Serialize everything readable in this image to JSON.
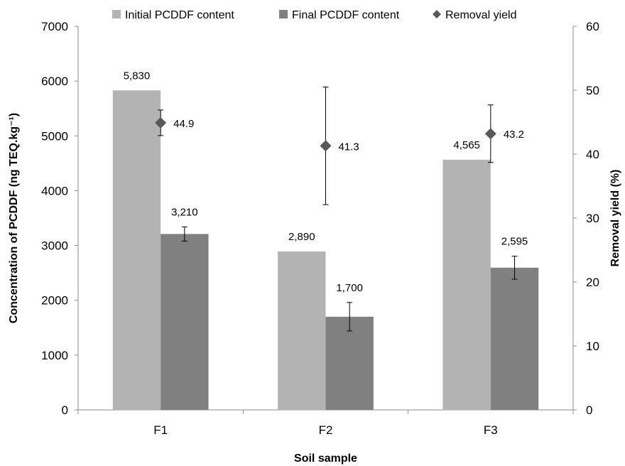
{
  "chart_data": {
    "type": "bar",
    "categories": [
      "F1",
      "F2",
      "F3"
    ],
    "series": [
      {
        "name": "Initial PCDDF content",
        "axis": "left",
        "color": "#b3b3b3",
        "values": [
          5830,
          2890,
          4565
        ],
        "labels": [
          "5,830",
          "2,890",
          "4,565"
        ]
      },
      {
        "name": "Final PCDDF content",
        "axis": "left",
        "color": "#808080",
        "values": [
          3210,
          1700,
          2595
        ],
        "labels": [
          "3,210",
          "1,700",
          "2,595"
        ],
        "error": [
          130,
          260,
          210
        ]
      },
      {
        "name": "Removal yield",
        "axis": "right",
        "type": "scatter",
        "marker": "diamond",
        "color": "#595959",
        "values": [
          44.9,
          41.3,
          43.2
        ],
        "labels": [
          "44.9",
          "41.3",
          "43.2"
        ],
        "error": [
          2,
          9.2,
          4.5
        ]
      }
    ],
    "xlabel": "Soil sample",
    "ylabel": "Concentration of PCDDF (ng TEQ.kg⁻¹)",
    "y2label": "Removal yield (%)",
    "ylim": [
      0,
      7000
    ],
    "y2lim": [
      0,
      60
    ],
    "yticks": [
      0,
      1000,
      2000,
      3000,
      4000,
      5000,
      6000,
      7000
    ],
    "y2ticks": [
      0,
      10,
      20,
      30,
      40,
      50,
      60
    ],
    "grid": false,
    "legend": "top"
  }
}
